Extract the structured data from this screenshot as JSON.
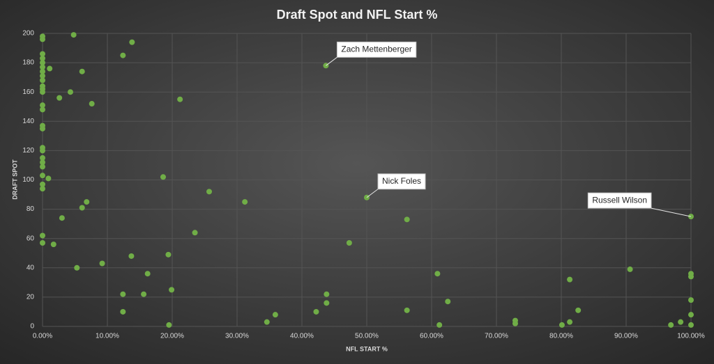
{
  "chart_data": {
    "type": "scatter",
    "title": "Draft Spot and NFL Start %",
    "xlabel": "NFL START %",
    "ylabel": "DRAFT SPOT",
    "color": "#70ad47",
    "grid": true,
    "x": [
      43.7,
      50,
      100,
      0,
      0,
      0,
      0,
      0,
      0,
      0,
      0,
      0,
      0,
      0,
      0,
      0,
      0,
      0,
      0,
      0,
      0,
      0,
      0,
      0,
      0,
      0,
      0,
      0,
      0,
      4.8,
      13.8,
      12.4,
      1.1,
      6.1,
      4.3,
      2.6,
      7.6,
      21.2,
      18.6,
      0.9,
      25.7,
      6.8,
      6.1,
      31.2,
      3.0,
      23.5,
      1.7,
      5.3,
      9.2,
      13.7,
      19.4,
      16.2,
      12.4,
      15.6,
      19.9,
      12.4,
      19.5,
      47.3,
      56.2,
      60.9,
      43.8,
      43.8,
      42.2,
      35.9,
      34.6,
      56.2,
      62.5,
      61.2,
      72.9,
      72.9,
      80.1,
      81.3,
      81.3,
      82.6,
      90.6,
      96.9,
      98.4,
      100,
      100,
      100,
      100,
      100
    ],
    "y": [
      178,
      88,
      75,
      198,
      196,
      186,
      183,
      180,
      177,
      174,
      171,
      168,
      164,
      162,
      160,
      151,
      148,
      137,
      135,
      122,
      120,
      115,
      112,
      109,
      103,
      97,
      94,
      62,
      57,
      199,
      194,
      185,
      176,
      174,
      160,
      156,
      152,
      155,
      102,
      101,
      92,
      85,
      81,
      85,
      74,
      64,
      56,
      40,
      43,
      48,
      49,
      36,
      22,
      22,
      25,
      10,
      1,
      57,
      73,
      36,
      22,
      16,
      10,
      8,
      3,
      11,
      17,
      1,
      4,
      2,
      1,
      3,
      32,
      11,
      39,
      1,
      3,
      36,
      34,
      18,
      8,
      1
    ],
    "point_labels": [
      "Zach Mettenberger",
      "Nick Foles",
      "Russell Wilson",
      null,
      null,
      null,
      null,
      null,
      null,
      null,
      null,
      null,
      null,
      null,
      null,
      null,
      null,
      null,
      null,
      null,
      null,
      null,
      null,
      null,
      null,
      null,
      null,
      null,
      null,
      null,
      null,
      null,
      null,
      null,
      null,
      null,
      null,
      null,
      null,
      null,
      null,
      null,
      null,
      null,
      null,
      null,
      null,
      null,
      null,
      null,
      null,
      null,
      null,
      null,
      null,
      null,
      null,
      null,
      null,
      null,
      null,
      null,
      null,
      null,
      null,
      null,
      null,
      null,
      null,
      null,
      null,
      null,
      null,
      null,
      null,
      null,
      null,
      null,
      null,
      null,
      null,
      null
    ],
    "xlim": [
      0,
      100
    ],
    "xticks": [
      {
        "value": 0,
        "label": "0.00%"
      },
      {
        "value": 10,
        "label": "10.00%"
      },
      {
        "value": 20,
        "label": "20.00%"
      },
      {
        "value": 30,
        "label": "30.00%"
      },
      {
        "value": 40,
        "label": "40.00%"
      },
      {
        "value": 50,
        "label": "50.00%"
      },
      {
        "value": 60,
        "label": "60.00%"
      },
      {
        "value": 70,
        "label": "70.00%"
      },
      {
        "value": 80,
        "label": "80.00%"
      },
      {
        "value": 90,
        "label": "90.00%"
      },
      {
        "value": 100,
        "label": "100.00%"
      }
    ],
    "ylim": [
      0,
      200
    ],
    "yticks": [
      0,
      20,
      40,
      60,
      80,
      100,
      120,
      140,
      160,
      180,
      200
    ]
  }
}
